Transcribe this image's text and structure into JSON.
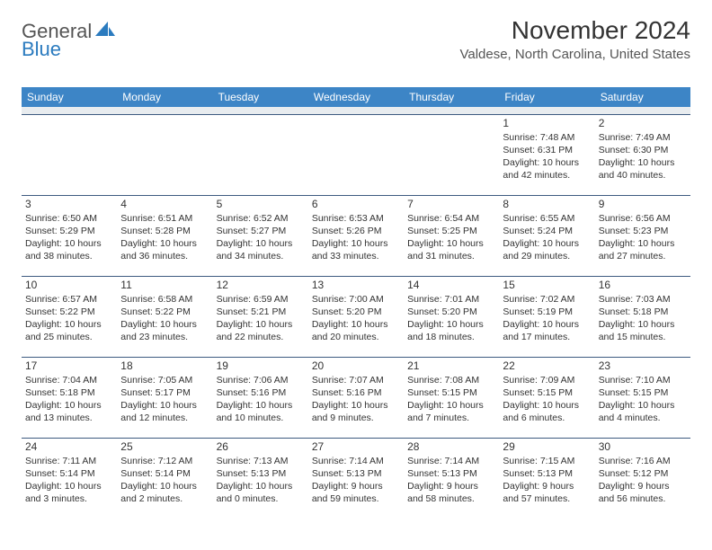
{
  "brand": {
    "part1": "General",
    "part2": "Blue"
  },
  "title": "November 2024",
  "location": "Valdese, North Carolina, United States",
  "colors": {
    "header_bg": "#3d85c6",
    "header_text": "#ffffff",
    "rule": "#3d5a80",
    "brand_blue": "#2b7bbf"
  },
  "weekdays": [
    "Sunday",
    "Monday",
    "Tuesday",
    "Wednesday",
    "Thursday",
    "Friday",
    "Saturday"
  ],
  "weeks": [
    [
      null,
      null,
      null,
      null,
      null,
      {
        "n": "1",
        "sr": "7:48 AM",
        "ss": "6:31 PM",
        "dl": "10 hours and 42 minutes."
      },
      {
        "n": "2",
        "sr": "7:49 AM",
        "ss": "6:30 PM",
        "dl": "10 hours and 40 minutes."
      }
    ],
    [
      {
        "n": "3",
        "sr": "6:50 AM",
        "ss": "5:29 PM",
        "dl": "10 hours and 38 minutes."
      },
      {
        "n": "4",
        "sr": "6:51 AM",
        "ss": "5:28 PM",
        "dl": "10 hours and 36 minutes."
      },
      {
        "n": "5",
        "sr": "6:52 AM",
        "ss": "5:27 PM",
        "dl": "10 hours and 34 minutes."
      },
      {
        "n": "6",
        "sr": "6:53 AM",
        "ss": "5:26 PM",
        "dl": "10 hours and 33 minutes."
      },
      {
        "n": "7",
        "sr": "6:54 AM",
        "ss": "5:25 PM",
        "dl": "10 hours and 31 minutes."
      },
      {
        "n": "8",
        "sr": "6:55 AM",
        "ss": "5:24 PM",
        "dl": "10 hours and 29 minutes."
      },
      {
        "n": "9",
        "sr": "6:56 AM",
        "ss": "5:23 PM",
        "dl": "10 hours and 27 minutes."
      }
    ],
    [
      {
        "n": "10",
        "sr": "6:57 AM",
        "ss": "5:22 PM",
        "dl": "10 hours and 25 minutes."
      },
      {
        "n": "11",
        "sr": "6:58 AM",
        "ss": "5:22 PM",
        "dl": "10 hours and 23 minutes."
      },
      {
        "n": "12",
        "sr": "6:59 AM",
        "ss": "5:21 PM",
        "dl": "10 hours and 22 minutes."
      },
      {
        "n": "13",
        "sr": "7:00 AM",
        "ss": "5:20 PM",
        "dl": "10 hours and 20 minutes."
      },
      {
        "n": "14",
        "sr": "7:01 AM",
        "ss": "5:20 PM",
        "dl": "10 hours and 18 minutes."
      },
      {
        "n": "15",
        "sr": "7:02 AM",
        "ss": "5:19 PM",
        "dl": "10 hours and 17 minutes."
      },
      {
        "n": "16",
        "sr": "7:03 AM",
        "ss": "5:18 PM",
        "dl": "10 hours and 15 minutes."
      }
    ],
    [
      {
        "n": "17",
        "sr": "7:04 AM",
        "ss": "5:18 PM",
        "dl": "10 hours and 13 minutes."
      },
      {
        "n": "18",
        "sr": "7:05 AM",
        "ss": "5:17 PM",
        "dl": "10 hours and 12 minutes."
      },
      {
        "n": "19",
        "sr": "7:06 AM",
        "ss": "5:16 PM",
        "dl": "10 hours and 10 minutes."
      },
      {
        "n": "20",
        "sr": "7:07 AM",
        "ss": "5:16 PM",
        "dl": "10 hours and 9 minutes."
      },
      {
        "n": "21",
        "sr": "7:08 AM",
        "ss": "5:15 PM",
        "dl": "10 hours and 7 minutes."
      },
      {
        "n": "22",
        "sr": "7:09 AM",
        "ss": "5:15 PM",
        "dl": "10 hours and 6 minutes."
      },
      {
        "n": "23",
        "sr": "7:10 AM",
        "ss": "5:15 PM",
        "dl": "10 hours and 4 minutes."
      }
    ],
    [
      {
        "n": "24",
        "sr": "7:11 AM",
        "ss": "5:14 PM",
        "dl": "10 hours and 3 minutes."
      },
      {
        "n": "25",
        "sr": "7:12 AM",
        "ss": "5:14 PM",
        "dl": "10 hours and 2 minutes."
      },
      {
        "n": "26",
        "sr": "7:13 AM",
        "ss": "5:13 PM",
        "dl": "10 hours and 0 minutes."
      },
      {
        "n": "27",
        "sr": "7:14 AM",
        "ss": "5:13 PM",
        "dl": "9 hours and 59 minutes."
      },
      {
        "n": "28",
        "sr": "7:14 AM",
        "ss": "5:13 PM",
        "dl": "9 hours and 58 minutes."
      },
      {
        "n": "29",
        "sr": "7:15 AM",
        "ss": "5:13 PM",
        "dl": "9 hours and 57 minutes."
      },
      {
        "n": "30",
        "sr": "7:16 AM",
        "ss": "5:12 PM",
        "dl": "9 hours and 56 minutes."
      }
    ]
  ],
  "labels": {
    "sunrise": "Sunrise:",
    "sunset": "Sunset:",
    "daylight": "Daylight:"
  }
}
